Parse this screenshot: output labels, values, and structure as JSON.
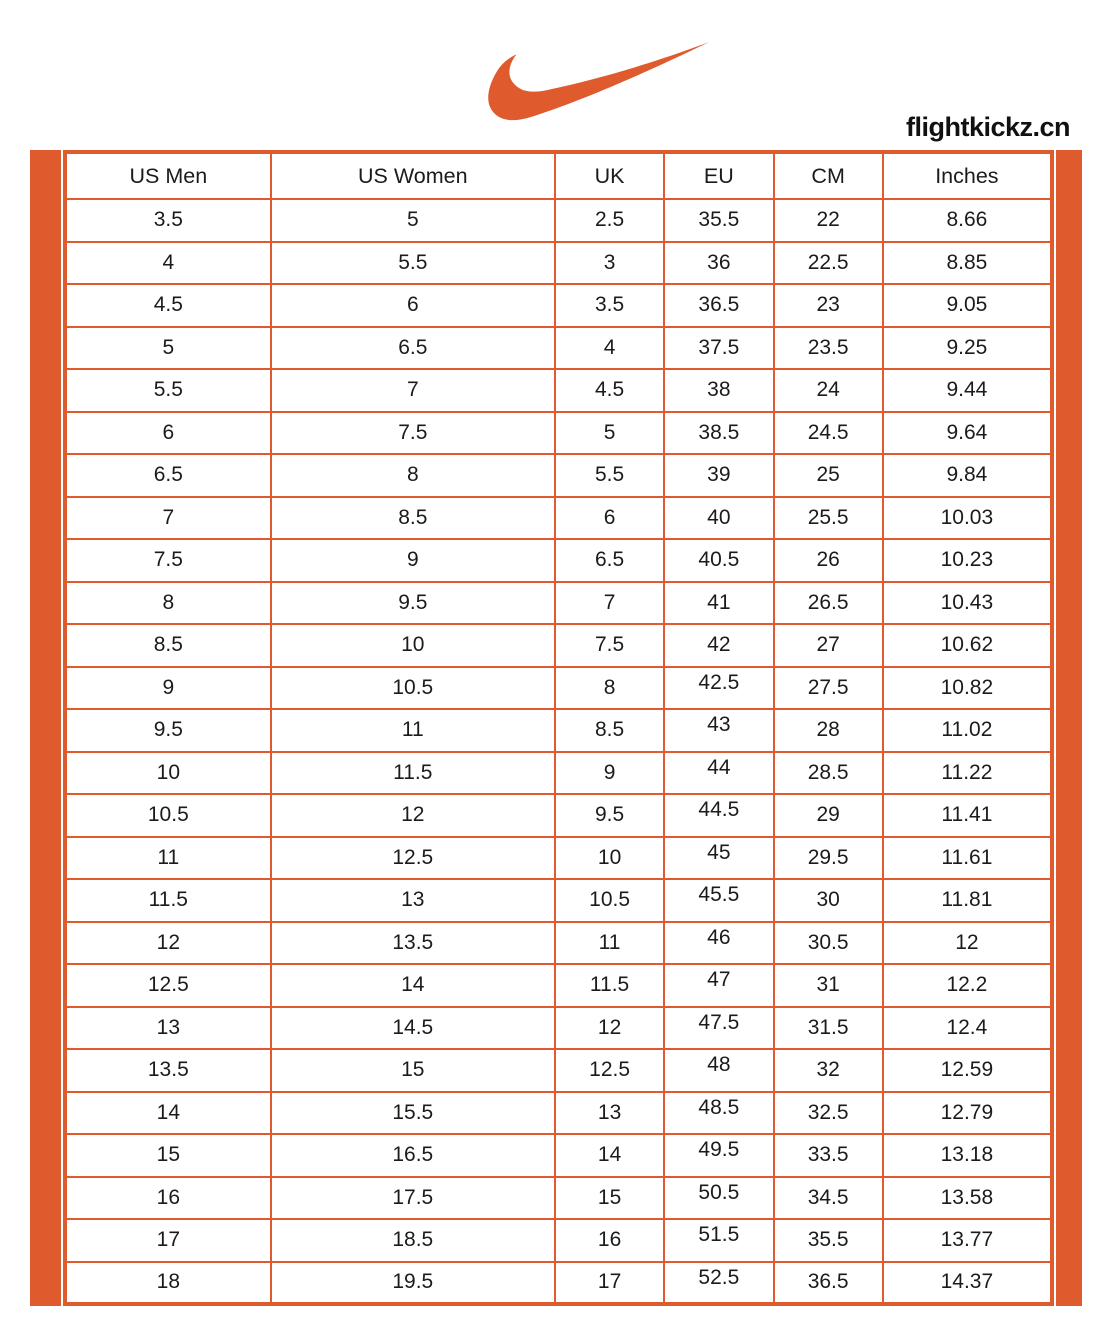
{
  "branding": {
    "logo_icon": "nike-swoosh-icon",
    "site_label": "flightkickz.cn"
  },
  "colors": {
    "accent": "#DF5A2C",
    "text": "#1B1B1B",
    "background": "#FFFFFF"
  },
  "table": {
    "columns": [
      "US Men",
      "US Women",
      "UK",
      "EU",
      "CM",
      "Inches"
    ],
    "rows": [
      [
        "3.5",
        "5",
        "2.5",
        "35.5",
        "22",
        "8.66"
      ],
      [
        "4",
        "5.5",
        "3",
        "36",
        "22.5",
        "8.85"
      ],
      [
        "4.5",
        "6",
        "3.5",
        "36.5",
        "23",
        "9.05"
      ],
      [
        "5",
        "6.5",
        "4",
        "37.5",
        "23.5",
        "9.25"
      ],
      [
        "5.5",
        "7",
        "4.5",
        "38",
        "24",
        "9.44"
      ],
      [
        "6",
        "7.5",
        "5",
        "38.5",
        "24.5",
        "9.64"
      ],
      [
        "6.5",
        "8",
        "5.5",
        "39",
        "25",
        "9.84"
      ],
      [
        "7",
        "8.5",
        "6",
        "40",
        "25.5",
        "10.03"
      ],
      [
        "7.5",
        "9",
        "6.5",
        "40.5",
        "26",
        "10.23"
      ],
      [
        "8",
        "9.5",
        "7",
        "41",
        "26.5",
        "10.43"
      ],
      [
        "8.5",
        "10",
        "7.5",
        "42",
        "27",
        "10.62"
      ],
      [
        "9",
        "10.5",
        "8",
        "42.5",
        "27.5",
        "10.82"
      ],
      [
        "9.5",
        "11",
        "8.5",
        "43",
        "28",
        "11.02"
      ],
      [
        "10",
        "11.5",
        "9",
        "44",
        "28.5",
        "11.22"
      ],
      [
        "10.5",
        "12",
        "9.5",
        "44.5",
        "29",
        "11.41"
      ],
      [
        "11",
        "12.5",
        "10",
        "45",
        "29.5",
        "11.61"
      ],
      [
        "11.5",
        "13",
        "10.5",
        "45.5",
        "30",
        "11.81"
      ],
      [
        "12",
        "13.5",
        "11",
        "46",
        "30.5",
        "12"
      ],
      [
        "12.5",
        "14",
        "11.5",
        "47",
        "31",
        "12.2"
      ],
      [
        "13",
        "14.5",
        "12",
        "47.5",
        "31.5",
        "12.4"
      ],
      [
        "13.5",
        "15",
        "12.5",
        "48",
        "32",
        "12.59"
      ],
      [
        "14",
        "15.5",
        "13",
        "48.5",
        "32.5",
        "12.79"
      ],
      [
        "15",
        "16.5",
        "14",
        "49.5",
        "33.5",
        "13.18"
      ],
      [
        "16",
        "17.5",
        "15",
        "50.5",
        "34.5",
        "13.58"
      ],
      [
        "17",
        "18.5",
        "16",
        "51.5",
        "35.5",
        "13.77"
      ],
      [
        "18",
        "19.5",
        "17",
        "52.5",
        "36.5",
        "14.37"
      ]
    ]
  }
}
